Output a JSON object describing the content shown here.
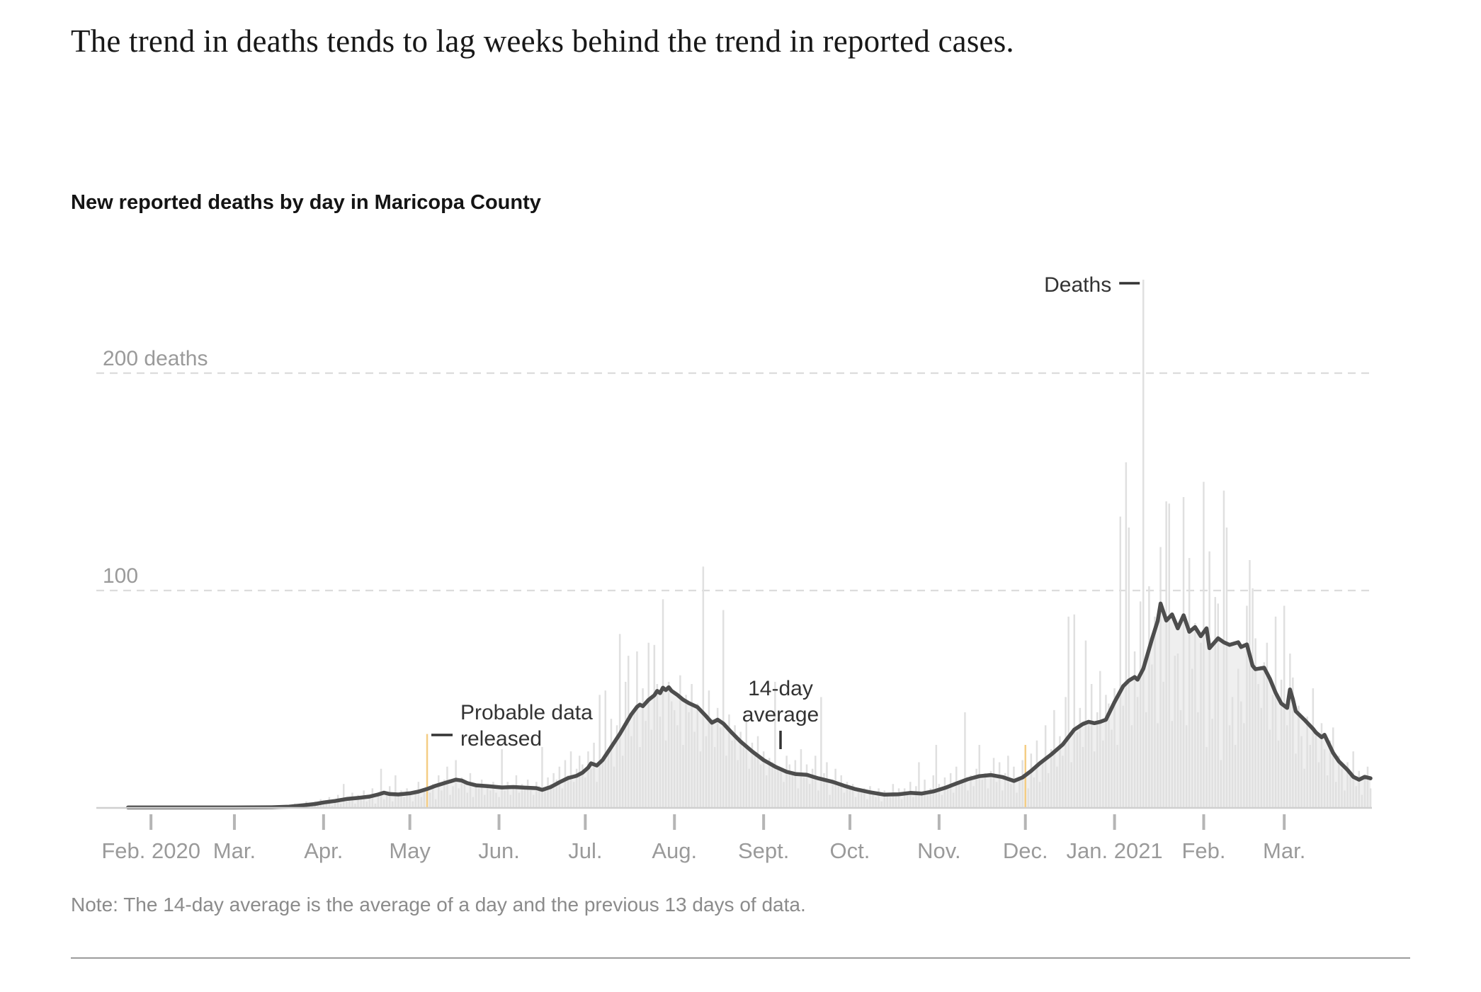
{
  "page": {
    "title": "The trend in deaths tends to lag weeks behind the trend in reported cases.",
    "note": "Note: The 14-day average is the average of a day and the previous 13 days of data."
  },
  "colors": {
    "bar": "#e0e0e0",
    "bar_highlight": "#f4cd85",
    "area": "#efefef",
    "line": "#4d4d4d",
    "gridline": "#dcdcdc",
    "baseline": "#cfcfcf",
    "tick": "#b5b5b5",
    "axis_text": "#9a9a9a",
    "annotation_text": "#333333"
  },
  "chart_data": {
    "type": "bar",
    "title": "New reported deaths by day in Maricopa County",
    "ylabel": "deaths",
    "ylim": [
      0,
      245
    ],
    "grid": "dashed-horizontal",
    "y_axis": {
      "gridlines": [
        {
          "value": 200,
          "label": "200 deaths"
        },
        {
          "value": 100,
          "label": "100"
        }
      ]
    },
    "x_axis": {
      "start": "2020-01-13",
      "end": "2021-03-31",
      "ticks": [
        {
          "date": "2020-02-01",
          "label": "Feb. 2020"
        },
        {
          "date": "2020-03-01",
          "label": "Mar."
        },
        {
          "date": "2020-04-01",
          "label": "Apr."
        },
        {
          "date": "2020-05-01",
          "label": "May"
        },
        {
          "date": "2020-06-01",
          "label": "Jun."
        },
        {
          "date": "2020-07-01",
          "label": "Jul."
        },
        {
          "date": "2020-08-01",
          "label": "Aug."
        },
        {
          "date": "2020-09-01",
          "label": "Sept."
        },
        {
          "date": "2020-10-01",
          "label": "Oct."
        },
        {
          "date": "2020-11-01",
          "label": "Nov."
        },
        {
          "date": "2020-12-01",
          "label": "Dec."
        },
        {
          "date": "2021-01-01",
          "label": "Jan. 2021"
        },
        {
          "date": "2021-02-01",
          "label": "Feb."
        },
        {
          "date": "2021-03-01",
          "label": "Mar."
        }
      ]
    },
    "bars": {
      "name": "New reported deaths",
      "start_date": "2020-01-13",
      "daily_values": [
        0,
        0,
        0,
        0,
        0,
        0,
        0,
        0,
        0,
        0,
        0,
        0,
        0,
        0,
        0,
        0,
        0,
        0,
        0,
        0,
        0,
        0,
        0,
        0,
        0,
        0,
        0,
        0,
        0,
        0,
        0,
        0,
        0,
        0,
        0,
        0,
        0,
        0,
        0,
        0,
        0,
        0,
        0,
        0,
        0,
        0,
        0,
        0,
        0,
        0,
        0,
        0,
        0,
        0,
        0,
        0,
        0,
        0,
        0,
        0,
        0,
        0,
        0,
        0,
        0,
        1,
        0,
        1,
        0,
        2,
        1,
        2,
        1,
        3,
        2,
        1,
        3,
        2,
        4,
        3,
        2,
        5,
        1,
        4,
        6,
        2,
        11,
        3,
        5,
        7,
        2,
        6,
        4,
        8,
        3,
        5,
        9,
        2,
        6,
        18,
        4,
        7,
        10,
        3,
        15,
        6,
        8,
        5,
        9,
        6,
        3,
        8,
        12,
        5,
        9,
        34,
        7,
        11,
        4,
        15,
        8,
        13,
        19,
        6,
        10,
        22,
        9,
        14,
        12,
        7,
        16,
        5,
        11,
        9,
        13,
        6,
        10,
        8,
        12,
        7,
        5,
        27,
        8,
        12,
        6,
        10,
        15,
        7,
        11,
        9,
        13,
        8,
        6,
        12,
        10,
        28,
        9,
        14,
        11,
        16,
        13,
        19,
        9,
        22,
        15,
        26,
        12,
        18,
        24,
        20,
        14,
        26,
        18,
        30,
        12,
        52,
        22,
        54,
        26,
        41,
        19,
        38,
        80,
        24,
        58,
        70,
        33,
        45,
        72,
        28,
        55,
        40,
        76,
        36,
        75,
        57,
        42,
        96,
        31,
        58,
        49,
        45,
        38,
        61,
        29,
        52,
        44,
        57,
        35,
        48,
        26,
        111,
        33,
        54,
        41,
        28,
        46,
        37,
        91,
        24,
        43,
        31,
        38,
        22,
        35,
        28,
        40,
        18,
        30,
        25,
        33,
        20,
        26,
        15,
        23,
        21,
        58,
        18,
        18,
        12,
        24,
        20,
        16,
        22,
        9,
        27,
        14,
        20,
        11,
        18,
        24,
        8,
        51,
        16,
        21,
        6,
        13,
        18,
        10,
        15,
        7,
        12,
        9,
        11,
        5,
        8,
        7,
        9,
        4,
        10,
        6,
        5,
        9,
        3,
        8,
        6,
        5,
        11,
        7,
        9,
        4,
        9,
        6,
        12,
        5,
        10,
        21,
        7,
        13,
        6,
        9,
        15,
        29,
        11,
        6,
        14,
        9,
        16,
        7,
        19,
        12,
        13,
        44,
        8,
        15,
        10,
        18,
        29,
        13,
        16,
        9,
        17,
        23,
        12,
        21,
        8,
        16,
        24,
        11,
        19,
        7,
        14,
        22,
        29,
        9,
        25,
        14,
        31,
        12,
        22,
        38,
        16,
        27,
        45,
        19,
        33,
        24,
        51,
        88,
        21,
        89,
        35,
        46,
        28,
        77,
        39,
        57,
        26,
        44,
        63,
        31,
        52,
        48,
        36,
        55,
        29,
        134,
        47,
        159,
        129,
        38,
        72,
        51,
        95,
        243,
        44,
        102,
        66,
        88,
        39,
        120,
        58,
        141,
        140,
        40,
        70,
        71,
        45,
        143,
        38,
        115,
        64,
        85,
        44,
        76,
        150,
        28,
        118,
        41,
        97,
        94,
        22,
        146,
        129,
        38,
        51,
        29,
        64,
        49,
        39,
        93,
        114,
        101,
        78,
        57,
        46,
        67,
        76,
        36,
        52,
        88,
        31,
        59,
        93,
        38,
        71,
        60,
        25,
        47,
        33,
        18,
        42,
        29,
        55,
        34,
        21,
        39,
        27,
        15,
        31,
        37,
        12,
        24,
        18,
        8,
        21,
        15,
        26,
        10,
        17,
        6,
        13,
        19,
        9
      ]
    },
    "highlight_bars": [
      {
        "date": "2020-05-07",
        "value": 34
      },
      {
        "date": "2020-12-01",
        "value": 29
      }
    ],
    "average_line": {
      "name": "14-day average",
      "points": [
        [
          "2020-01-24",
          0.2
        ],
        [
          "2020-02-10",
          0.2
        ],
        [
          "2020-03-01",
          0.2
        ],
        [
          "2020-03-14",
          0.3
        ],
        [
          "2020-03-20",
          0.6
        ],
        [
          "2020-03-25",
          1.2
        ],
        [
          "2020-03-29",
          1.8
        ],
        [
          "2020-04-01",
          2.5
        ],
        [
          "2020-04-05",
          3.2
        ],
        [
          "2020-04-09",
          4.1
        ],
        [
          "2020-04-13",
          4.6
        ],
        [
          "2020-04-17",
          5.2
        ],
        [
          "2020-04-20",
          6.2
        ],
        [
          "2020-04-22",
          7
        ],
        [
          "2020-04-24",
          6.4
        ],
        [
          "2020-04-27",
          6.2
        ],
        [
          "2020-05-01",
          6.7
        ],
        [
          "2020-05-04",
          7.5
        ],
        [
          "2020-05-07",
          8.7
        ],
        [
          "2020-05-10",
          10.2
        ],
        [
          "2020-05-14",
          11.8
        ],
        [
          "2020-05-17",
          13
        ],
        [
          "2020-05-19",
          12.6
        ],
        [
          "2020-05-21",
          11.4
        ],
        [
          "2020-05-24",
          10.4
        ],
        [
          "2020-05-28",
          10
        ],
        [
          "2020-06-02",
          9.4
        ],
        [
          "2020-06-06",
          9.6
        ],
        [
          "2020-06-10",
          9.3
        ],
        [
          "2020-06-14",
          9.1
        ],
        [
          "2020-06-16",
          8.3
        ],
        [
          "2020-06-19",
          9.6
        ],
        [
          "2020-06-22",
          11.8
        ],
        [
          "2020-06-25",
          13.7
        ],
        [
          "2020-06-28",
          14.8
        ],
        [
          "2020-06-30",
          16.2
        ],
        [
          "2020-07-02",
          18.5
        ],
        [
          "2020-07-03",
          20.5
        ],
        [
          "2020-07-05",
          19.5
        ],
        [
          "2020-07-07",
          22
        ],
        [
          "2020-07-09",
          26
        ],
        [
          "2020-07-11",
          30
        ],
        [
          "2020-07-13",
          34
        ],
        [
          "2020-07-15",
          38.5
        ],
        [
          "2020-07-17",
          43
        ],
        [
          "2020-07-19",
          46.5
        ],
        [
          "2020-07-20",
          47.5
        ],
        [
          "2020-07-21",
          46.8
        ],
        [
          "2020-07-23",
          49.7
        ],
        [
          "2020-07-25",
          51.8
        ],
        [
          "2020-07-26",
          53.8
        ],
        [
          "2020-07-27",
          52.8
        ],
        [
          "2020-07-28",
          55.3
        ],
        [
          "2020-07-29",
          54.2
        ],
        [
          "2020-07-30",
          55.5
        ],
        [
          "2020-07-31",
          53.8
        ],
        [
          "2020-08-02",
          52
        ],
        [
          "2020-08-04",
          49.8
        ],
        [
          "2020-08-06",
          48.2
        ],
        [
          "2020-08-09",
          46.4
        ],
        [
          "2020-08-12",
          42.2
        ],
        [
          "2020-08-14",
          39.2
        ],
        [
          "2020-08-16",
          40.6
        ],
        [
          "2020-08-18",
          38.8
        ],
        [
          "2020-08-21",
          34.5
        ],
        [
          "2020-08-24",
          30.5
        ],
        [
          "2020-08-28",
          26
        ],
        [
          "2020-09-01",
          22
        ],
        [
          "2020-09-05",
          19
        ],
        [
          "2020-09-09",
          16.6
        ],
        [
          "2020-09-12",
          15.6
        ],
        [
          "2020-09-16",
          15.2
        ],
        [
          "2020-09-20",
          13.6
        ],
        [
          "2020-09-25",
          12
        ],
        [
          "2020-09-29",
          10.2
        ],
        [
          "2020-10-03",
          8.6
        ],
        [
          "2020-10-08",
          7.2
        ],
        [
          "2020-10-13",
          6.1
        ],
        [
          "2020-10-18",
          6.3
        ],
        [
          "2020-10-22",
          6.9
        ],
        [
          "2020-10-26",
          6.6
        ],
        [
          "2020-10-30",
          7.6
        ],
        [
          "2020-11-03",
          9.2
        ],
        [
          "2020-11-07",
          11.2
        ],
        [
          "2020-11-11",
          13.2
        ],
        [
          "2020-11-15",
          14.6
        ],
        [
          "2020-11-19",
          15.1
        ],
        [
          "2020-11-23",
          14.2
        ],
        [
          "2020-11-27",
          12.4
        ],
        [
          "2020-11-30",
          14
        ],
        [
          "2020-12-03",
          17
        ],
        [
          "2020-12-06",
          20.5
        ],
        [
          "2020-12-10",
          24.6
        ],
        [
          "2020-12-14",
          29.2
        ],
        [
          "2020-12-18",
          36
        ],
        [
          "2020-12-21",
          38.6
        ],
        [
          "2020-12-23",
          39.6
        ],
        [
          "2020-12-25",
          39
        ],
        [
          "2020-12-27",
          39.6
        ],
        [
          "2020-12-29",
          40.6
        ],
        [
          "2021-01-01",
          48.7
        ],
        [
          "2021-01-04",
          56
        ],
        [
          "2021-01-06",
          58.6
        ],
        [
          "2021-01-08",
          60.2
        ],
        [
          "2021-01-09",
          59
        ],
        [
          "2021-01-11",
          64
        ],
        [
          "2021-01-12",
          68.5
        ],
        [
          "2021-01-14",
          77.6
        ],
        [
          "2021-01-16",
          86
        ],
        [
          "2021-01-17",
          94
        ],
        [
          "2021-01-19",
          86.2
        ],
        [
          "2021-01-21",
          89
        ],
        [
          "2021-01-23",
          82.6
        ],
        [
          "2021-01-25",
          88.6
        ],
        [
          "2021-01-27",
          81
        ],
        [
          "2021-01-29",
          83.2
        ],
        [
          "2021-01-31",
          79
        ],
        [
          "2021-02-02",
          82.6
        ],
        [
          "2021-02-03",
          73.5
        ],
        [
          "2021-02-06",
          78
        ],
        [
          "2021-02-08",
          76.2
        ],
        [
          "2021-02-10",
          75
        ],
        [
          "2021-02-13",
          76.2
        ],
        [
          "2021-02-14",
          74
        ],
        [
          "2021-02-16",
          75.2
        ],
        [
          "2021-02-18",
          65.4
        ],
        [
          "2021-02-19",
          63.8
        ],
        [
          "2021-02-22",
          64.5
        ],
        [
          "2021-02-24",
          59.4
        ],
        [
          "2021-02-26",
          53
        ],
        [
          "2021-02-28",
          48
        ],
        [
          "2021-03-02",
          46
        ],
        [
          "2021-03-03",
          54.5
        ],
        [
          "2021-03-04",
          50
        ],
        [
          "2021-03-05",
          44.5
        ],
        [
          "2021-03-08",
          40.6
        ],
        [
          "2021-03-11",
          36.4
        ],
        [
          "2021-03-12",
          34.7
        ],
        [
          "2021-03-14",
          32.5
        ],
        [
          "2021-03-15",
          33.6
        ],
        [
          "2021-03-18",
          25.3
        ],
        [
          "2021-03-20",
          21.4
        ],
        [
          "2021-03-23",
          17.5
        ],
        [
          "2021-03-25",
          14.3
        ],
        [
          "2021-03-27",
          13
        ],
        [
          "2021-03-29",
          14.3
        ],
        [
          "2021-03-31",
          13.6
        ]
      ]
    },
    "annotations": {
      "deaths": {
        "text": "Deaths",
        "date": "2021-01-11"
      },
      "probable": {
        "line1": "Probable data",
        "line2": "released",
        "date": "2020-05-07"
      },
      "average": {
        "line1": "14-day",
        "line2": "average"
      }
    }
  }
}
